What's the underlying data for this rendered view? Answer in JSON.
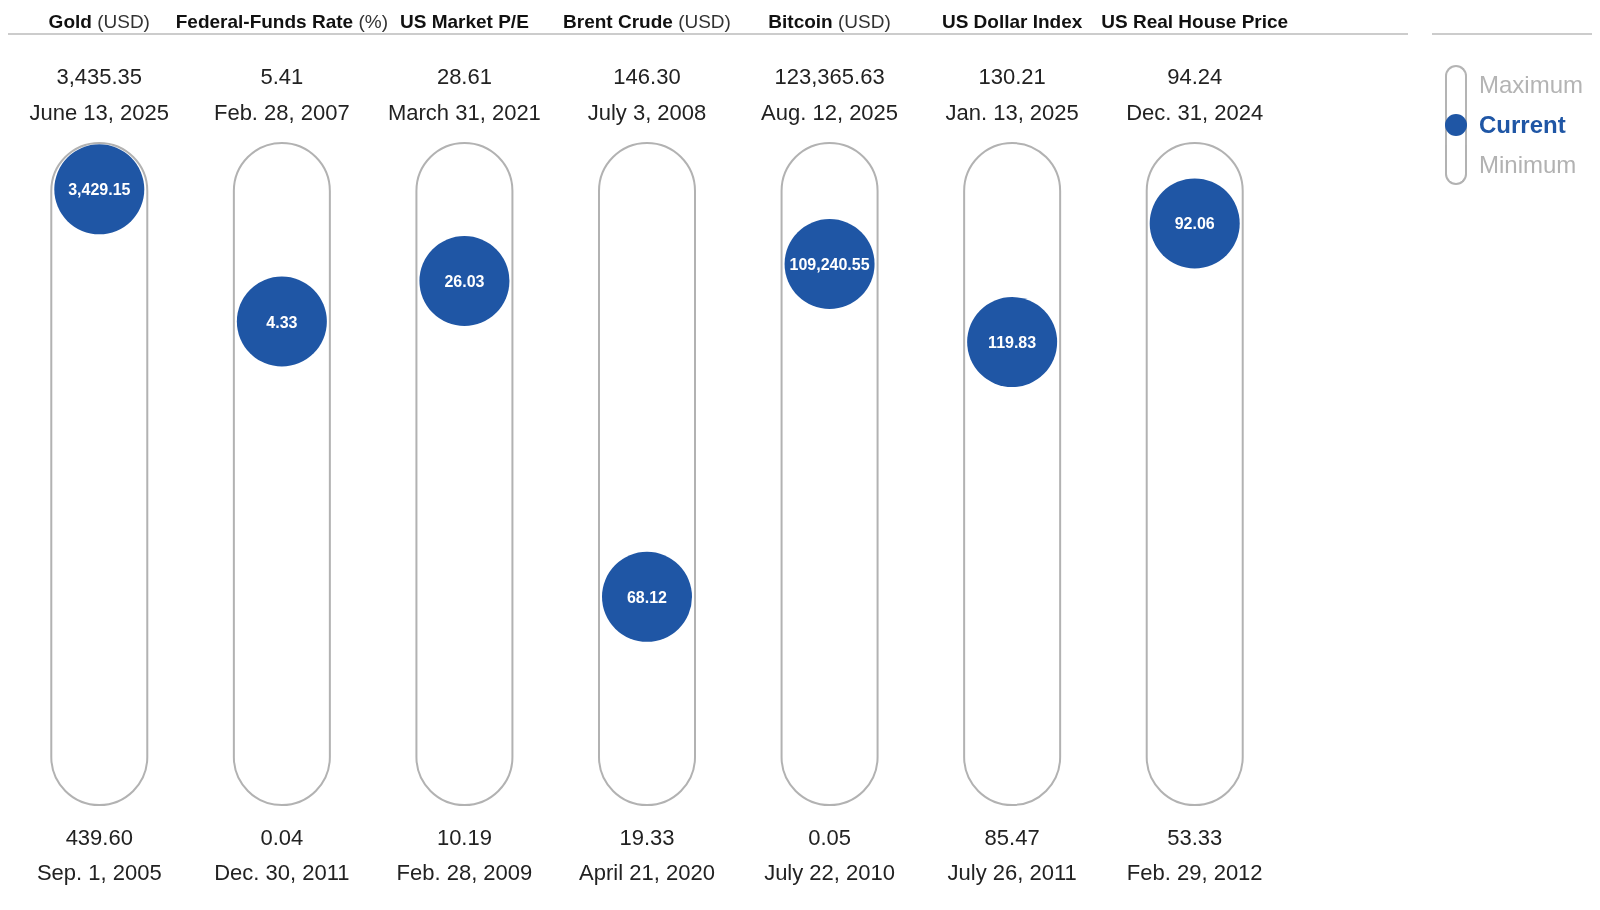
{
  "chart_data": {
    "type": "other",
    "categories": [
      "Gold (USD)",
      "Federal-Funds Rate (%)",
      "US Market P/E",
      "Brent Crude (USD)",
      "Bitcoin (USD)",
      "US Dollar Index",
      "US Real House Price"
    ],
    "series": [
      {
        "name": "Maximum",
        "color": "#b4b4b4",
        "values": [
          3435.35,
          5.41,
          28.61,
          146.3,
          123365.63,
          130.21,
          94.24
        ],
        "value_labels": [
          "3,435.35",
          "5.41",
          "28.61",
          "146.30",
          "123,365.63",
          "130.21",
          "94.24"
        ]
      },
      {
        "name": "Current",
        "color": "#1f56a5",
        "values": [
          3429.15,
          4.33,
          26.03,
          68.12,
          109240.55,
          119.83,
          92.06
        ],
        "value_labels": [
          "3,429.15",
          "4.33",
          "26.03",
          "68.12",
          "109,240.55",
          "119.83",
          "92.06"
        ]
      },
      {
        "name": "Minimum",
        "color": "#b2b2b2",
        "values": [
          439.6,
          0.04,
          10.19,
          19.33,
          0.05,
          85.47,
          53.33
        ],
        "value_labels": [
          "439.60",
          "0.04",
          "10.19",
          "19.33",
          "0.05",
          "85.47",
          "53.33"
        ]
      }
    ],
    "annotations": [
      "June 13, 2025",
      "Feb. 28, 2007",
      "March 31, 2021",
      "July 3, 2008",
      "Aug. 12, 2025",
      "Jan. 13, 2025",
      "Dec. 31, 2024",
      "Sep. 1, 2005",
      "Dec. 30, 2011",
      "Feb. 28, 2009",
      "April 21, 2020",
      "July 22, 2010",
      "July 26, 2011",
      "Feb. 29, 2012"
    ],
    "legend": "top right"
  }
}
